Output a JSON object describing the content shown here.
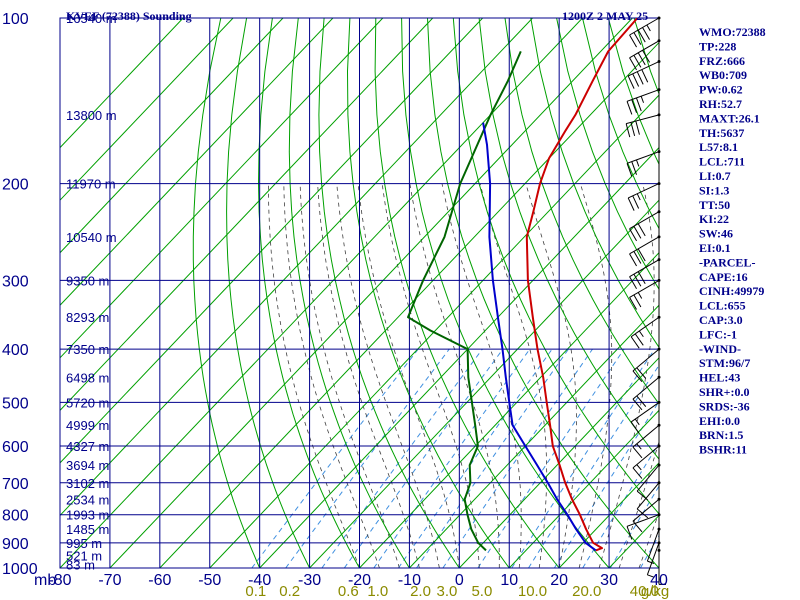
{
  "header": {
    "station": "KVEF (72388) Sounding",
    "time": "1200Z  2 MAY 25"
  },
  "colors": {
    "grid": "#00008b",
    "isotherm_dry_adiabat": "#00a000",
    "moist_adiabat": "#404040",
    "mixing_ratio": "#4090e0",
    "temperature": "#cc0000",
    "dewpoint": "#006400",
    "parcel": "#0000cc",
    "wind_barb": "#000000",
    "mixing_label": "#8b8b00"
  },
  "chart_data": {
    "type": "line",
    "title": "KVEF (72388) Sounding",
    "subtitle": "1200Z  2 MAY 25",
    "x_axis_label": "mb",
    "x_axis_ticks": [
      -80,
      -70,
      -60,
      -50,
      -40,
      -30,
      -20,
      -10,
      0,
      10,
      20,
      30,
      40
    ],
    "y_axis": "log-pressure (mb), 1000 at bottom to 100 at top",
    "pressure_ticks": [
      100,
      200,
      300,
      400,
      500,
      600,
      700,
      800,
      900,
      1000
    ],
    "height_labels": [
      {
        "p": 985,
        "label": "83 m"
      },
      {
        "p": 950,
        "label": "521 m"
      },
      {
        "p": 900,
        "label": "995 m"
      },
      {
        "p": 850,
        "label": "1485 m"
      },
      {
        "p": 800,
        "label": "1993 m"
      },
      {
        "p": 750,
        "label": "2534 m"
      },
      {
        "p": 700,
        "label": "3102 m"
      },
      {
        "p": 650,
        "label": "3694 m"
      },
      {
        "p": 600,
        "label": "4327 m"
      },
      {
        "p": 550,
        "label": "4999 m"
      },
      {
        "p": 500,
        "label": "5720 m"
      },
      {
        "p": 450,
        "label": "6498 m"
      },
      {
        "p": 400,
        "label": "7350 m"
      },
      {
        "p": 350,
        "label": "8293 m"
      },
      {
        "p": 300,
        "label": "9350 m"
      },
      {
        "p": 250,
        "label": "10540 m"
      },
      {
        "p": 200,
        "label": "11970 m"
      },
      {
        "p": 150,
        "label": "13800 m"
      },
      {
        "p": 100,
        "label": "16540 m"
      }
    ],
    "mixing_ratio_labels": [
      "0.1",
      "0.2",
      "0.6",
      "1.0",
      "2.0",
      "3.0",
      "5.0",
      "10.0",
      "20.0",
      "40.0"
    ],
    "mixing_ratio_unit": "g/kg",
    "series": [
      {
        "points": [
          [
            929,
            24.0
          ],
          [
            920,
            24.8
          ],
          [
            900,
            22.0
          ],
          [
            850,
            18.0
          ],
          [
            800,
            14.0
          ],
          [
            750,
            9.5
          ],
          [
            700,
            5.0
          ],
          [
            650,
            0.5
          ],
          [
            600,
            -4.5
          ],
          [
            550,
            -9.0
          ],
          [
            500,
            -14.0
          ],
          [
            450,
            -19.5
          ],
          [
            400,
            -26.0
          ],
          [
            350,
            -33.0
          ],
          [
            300,
            -41.0
          ],
          [
            250,
            -49.5
          ],
          [
            225,
            -53.0
          ],
          [
            200,
            -57.0
          ],
          [
            180,
            -60.0
          ],
          [
            160,
            -62.0
          ],
          [
            150,
            -63.0
          ],
          [
            130,
            -66.0
          ],
          [
            115,
            -68.5
          ],
          [
            100,
            -69.0
          ]
        ]
      },
      {
        "points": [
          [
            929,
            2.0
          ],
          [
            900,
            -1.0
          ],
          [
            850,
            -5.0
          ],
          [
            800,
            -8.5
          ],
          [
            750,
            -12.0
          ],
          [
            700,
            -14.0
          ],
          [
            650,
            -17.5
          ],
          [
            600,
            -19.5
          ],
          [
            550,
            -24.0
          ],
          [
            500,
            -29.0
          ],
          [
            450,
            -34.5
          ],
          [
            400,
            -40.0
          ],
          [
            370,
            -51.0
          ],
          [
            350,
            -58.0
          ],
          [
            300,
            -62.0
          ],
          [
            250,
            -66.0
          ],
          [
            200,
            -73.0
          ],
          [
            150,
            -80.0
          ],
          [
            130,
            -83.0
          ],
          [
            115,
            -86.0
          ]
        ]
      },
      {
        "points": [
          [
            929,
            24.0
          ],
          [
            900,
            20.5
          ],
          [
            850,
            16.0
          ],
          [
            800,
            11.5
          ],
          [
            750,
            6.5
          ],
          [
            700,
            1.5
          ],
          [
            650,
            -4.0
          ],
          [
            600,
            -10.0
          ],
          [
            550,
            -16.5
          ],
          [
            500,
            -21.5
          ],
          [
            450,
            -27.0
          ],
          [
            400,
            -33.0
          ],
          [
            350,
            -40.0
          ],
          [
            300,
            -48.0
          ],
          [
            250,
            -57.0
          ],
          [
            200,
            -67.0
          ],
          [
            170,
            -75.0
          ],
          [
            155,
            -80.0
          ]
        ]
      }
    ],
    "wind_barbs": [
      {
        "p": 100,
        "dir": 240,
        "kt": 45
      },
      {
        "p": 110,
        "dir": 240,
        "kt": 40
      },
      {
        "p": 120,
        "dir": 245,
        "kt": 40
      },
      {
        "p": 135,
        "dir": 250,
        "kt": 35
      },
      {
        "p": 150,
        "dir": 255,
        "kt": 30
      },
      {
        "p": 175,
        "dir": 250,
        "kt": 25
      },
      {
        "p": 200,
        "dir": 245,
        "kt": 25
      },
      {
        "p": 225,
        "dir": 240,
        "kt": 30
      },
      {
        "p": 250,
        "dir": 240,
        "kt": 30
      },
      {
        "p": 275,
        "dir": 240,
        "kt": 30
      },
      {
        "p": 300,
        "dir": 240,
        "kt": 25
      },
      {
        "p": 350,
        "dir": 235,
        "kt": 25
      },
      {
        "p": 400,
        "dir": 230,
        "kt": 20
      },
      {
        "p": 450,
        "dir": 230,
        "kt": 20
      },
      {
        "p": 500,
        "dir": 235,
        "kt": 15
      },
      {
        "p": 550,
        "dir": 230,
        "kt": 15
      },
      {
        "p": 600,
        "dir": 230,
        "kt": 15
      },
      {
        "p": 650,
        "dir": 220,
        "kt": 10
      },
      {
        "p": 700,
        "dir": 220,
        "kt": 10
      },
      {
        "p": 750,
        "dir": 230,
        "kt": 10
      },
      {
        "p": 800,
        "dir": 250,
        "kt": 10
      },
      {
        "p": 850,
        "dir": 200,
        "kt": 5
      },
      {
        "p": 900,
        "dir": 200,
        "kt": 5
      },
      {
        "p": 929,
        "dir": 180,
        "kt": 5
      }
    ]
  },
  "indices": [
    "WMO:72388",
    "TP:228",
    "FRZ:666",
    "WB0:709",
    "PW:0.62",
    "RH:52.7",
    "MAXT:26.1",
    "TH:5637",
    "L57:8.1",
    "LCL:711",
    "LI:0.7",
    "SI:1.3",
    "TT:50",
    "KI:22",
    "SW:46",
    "EI:0.1",
    "-PARCEL-",
    "CAPE:16",
    "CINH:49979",
    "LCL:655",
    "CAP:3.0",
    "LFC:-1",
    "-WIND-",
    "STM:96/7",
    "HEL:43",
    "SHR+:0.0",
    "SRDS:-36",
    "EHI:0.0",
    "BRN:1.5",
    "BSHR:11"
  ]
}
